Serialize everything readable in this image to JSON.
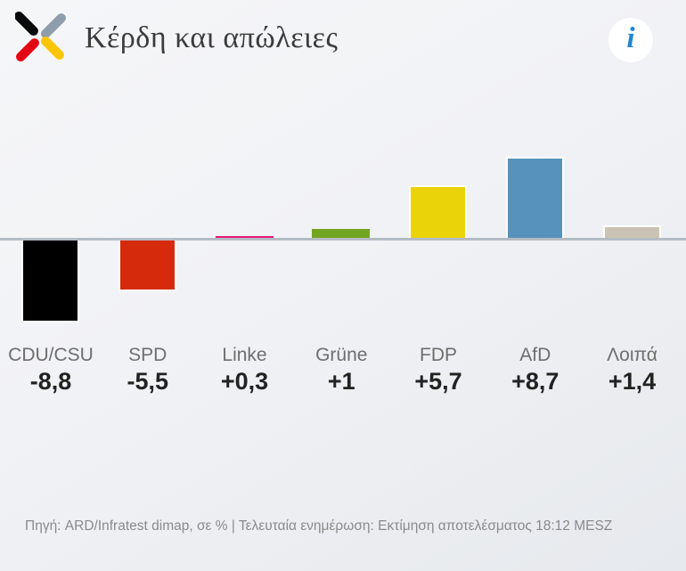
{
  "header": {
    "title": "Κέρδη και απώλειες",
    "logo": {
      "name": "broadcaster-x-logo",
      "colors": {
        "top_left": "#0a0a0a",
        "top_right": "#8e9dab",
        "bottom_left": "#e30613",
        "bottom_right": "#fdc500"
      }
    },
    "info_button_glyph": "i",
    "info_button_color": "#1e87d5"
  },
  "chart_data": {
    "type": "bar",
    "title": "Κέρδη και απώλειες",
    "subtitle": "",
    "xlabel": "",
    "ylabel": "",
    "unit": "percentage points (σε %)",
    "categories": [
      "CDU/CSU",
      "SPD",
      "Linke",
      "Grüne",
      "FDP",
      "AfD",
      "Λοιπά"
    ],
    "values": [
      -8.8,
      -5.5,
      0.3,
      1,
      5.7,
      8.7,
      1.4
    ],
    "value_labels": [
      "-8,8",
      "-5,5",
      "+0,3",
      "+1",
      "+5,7",
      "+8,7",
      "+1,4"
    ],
    "colors": [
      "#000000",
      "#d52a0c",
      "#e51a78",
      "#72a522",
      "#ead308",
      "#5692bb",
      "#cac3b3"
    ],
    "baseline_color": "#b4bcc4",
    "ylim": [
      -10,
      10
    ],
    "grid": false,
    "legend": false
  },
  "footer": {
    "source_note": "Πηγή: ARD/Infratest dimap, σε % | Τελευταία ενημέρωση: Εκτίμηση αποτελέσματος 18:12 MESZ"
  }
}
